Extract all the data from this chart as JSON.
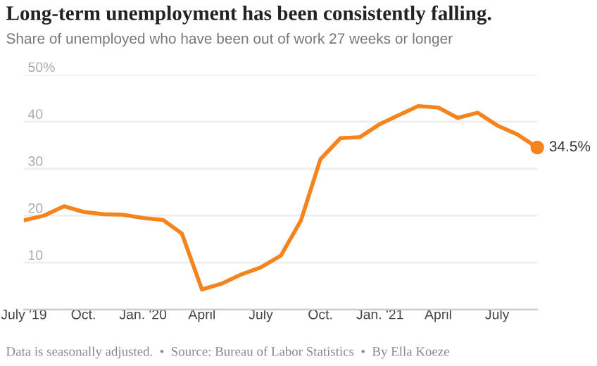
{
  "chart_data": {
    "type": "line",
    "title": "Long-term unemployment has been consistently falling.",
    "subtitle": "Share of unemployed who have been out of work 27 weeks or longer",
    "x": [
      "2019-07",
      "2019-08",
      "2019-09",
      "2019-10",
      "2019-11",
      "2019-12",
      "2020-01",
      "2020-02",
      "2020-03",
      "2020-04",
      "2020-05",
      "2020-06",
      "2020-07",
      "2020-08",
      "2020-09",
      "2020-10",
      "2020-11",
      "2020-12",
      "2021-01",
      "2021-02",
      "2021-03",
      "2021-04",
      "2021-05",
      "2021-06",
      "2021-07",
      "2021-08",
      "2021-09"
    ],
    "series": [
      {
        "color": "#f5841f",
        "marker": "none",
        "values": [
          19.0,
          20.0,
          22.0,
          20.8,
          20.3,
          20.2,
          19.5,
          19.1,
          16.2,
          4.3,
          5.5,
          7.5,
          9.0,
          11.5,
          19.0,
          32.0,
          36.5,
          36.7,
          39.5,
          41.5,
          43.3,
          43.0,
          40.8,
          41.9,
          39.2,
          37.3,
          34.5
        ]
      },
      {
        "type": "scatter",
        "color": "#f5841f",
        "marker": "circle",
        "x": [
          "2021-09"
        ],
        "values": [
          34.5
        ]
      }
    ],
    "xlim": [
      "2019-07",
      "2021-09"
    ],
    "xticks": [
      {
        "value": "2019-07",
        "label": "July '19"
      },
      {
        "value": "2019-10",
        "label": "Oct."
      },
      {
        "value": "2020-01",
        "label": "Jan. '20"
      },
      {
        "value": "2020-04",
        "label": "April"
      },
      {
        "value": "2020-07",
        "label": "July"
      },
      {
        "value": "2020-10",
        "label": "Oct."
      },
      {
        "value": "2021-01",
        "label": "Jan. '21"
      },
      {
        "value": "2021-04",
        "label": "April"
      },
      {
        "value": "2021-07",
        "label": "July"
      }
    ],
    "ylim": [
      0,
      50
    ],
    "yticks": [
      {
        "value": 0,
        "label": null
      },
      10,
      20,
      30,
      40,
      {
        "value": 50,
        "label": "50%"
      }
    ],
    "grid": "y",
    "annotations": [
      {
        "text": "34.5%",
        "x": "2021-09",
        "y": 34.5
      },
      "Data is seasonally adjusted.  •  Source: Bureau of Labor Statistics  •  By Ella Koeze"
    ]
  }
}
